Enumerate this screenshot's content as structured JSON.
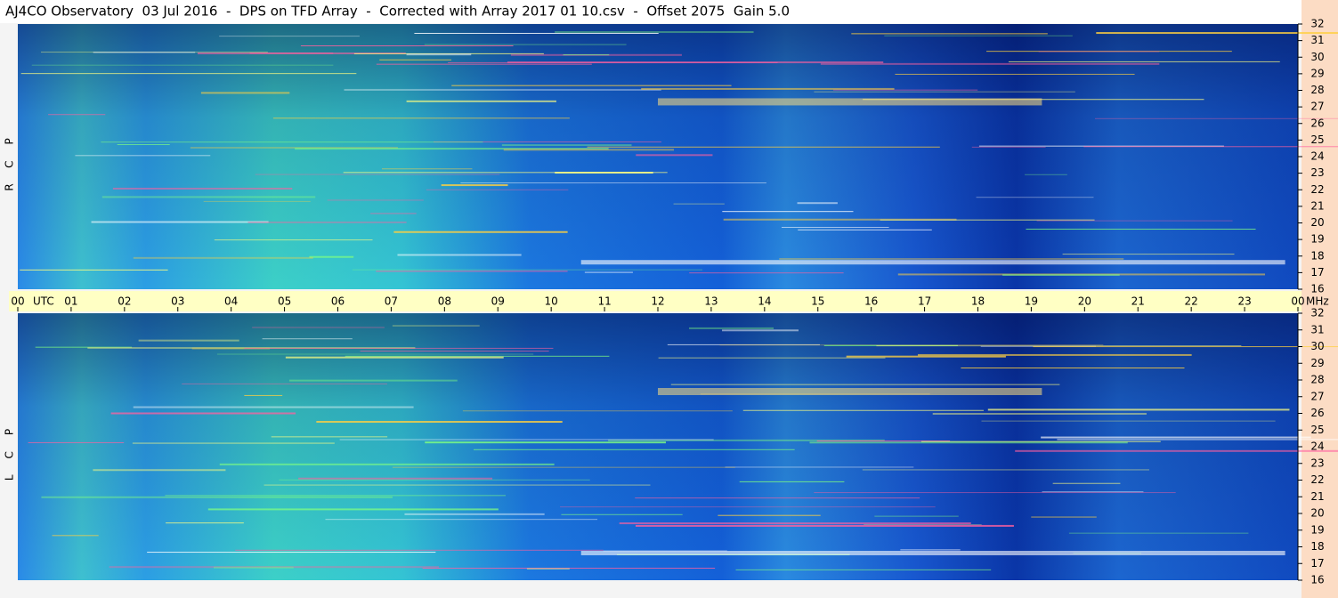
{
  "title": "AJ4CO Observatory  03 Jul 2016  -  DPS on TFD Array  -  Corrected with Array 2017 01 10.csv  -  Offset 2075  Gain 5.0",
  "chart_data": [
    {
      "type": "spectrogram",
      "channel": "RCP",
      "x_label": "UTC",
      "y_label": "MHz",
      "xlim": [
        0,
        24
      ],
      "xticks": [
        {
          "value": 0,
          "label": "00"
        },
        {
          "value": 1,
          "label": "01"
        },
        {
          "value": 2,
          "label": "02"
        },
        {
          "value": 3,
          "label": "03"
        },
        {
          "value": 4,
          "label": "04"
        },
        {
          "value": 5,
          "label": "05"
        },
        {
          "value": 6,
          "label": "06"
        },
        {
          "value": 7,
          "label": "07"
        },
        {
          "value": 8,
          "label": "08"
        },
        {
          "value": 9,
          "label": "09"
        },
        10,
        11,
        12,
        13,
        14,
        15,
        16,
        17,
        18,
        19,
        20,
        21,
        22,
        23,
        {
          "value": 24,
          "label": "00"
        }
      ],
      "ylim": [
        16,
        32
      ],
      "yticks": [
        16,
        17,
        18,
        19,
        20,
        21,
        22,
        23,
        24,
        25,
        26,
        27,
        28,
        29,
        30,
        31,
        32
      ]
    },
    {
      "type": "spectrogram",
      "channel": "LCP",
      "xlim": [
        0,
        24
      ],
      "ylim": [
        16,
        32
      ],
      "yticks": [
        16,
        17,
        18,
        19,
        20,
        21,
        22,
        23,
        24,
        25,
        26,
        27,
        28,
        29,
        30,
        31,
        32
      ]
    }
  ]
}
